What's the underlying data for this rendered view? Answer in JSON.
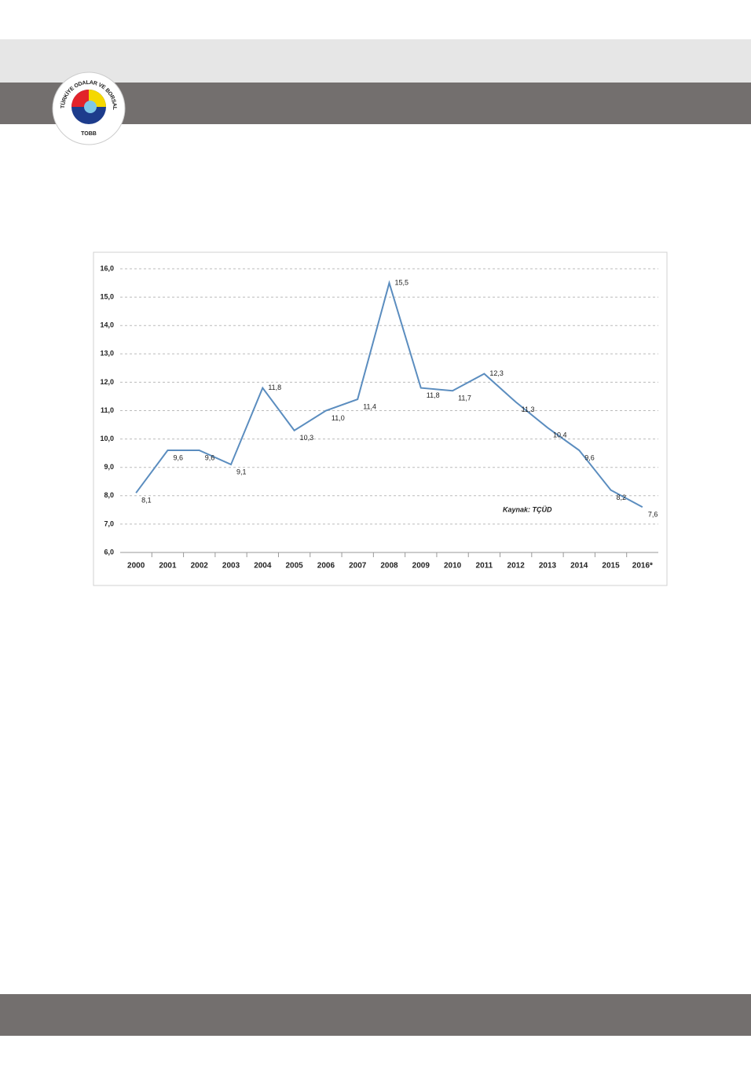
{
  "logo": {
    "name": "TOBB",
    "ring": "TÜRKİYE ODALAR VE BORSALAR BİRLİĞİ"
  },
  "chart_data": {
    "type": "line",
    "categories": [
      "2000",
      "2001",
      "2002",
      "2003",
      "2004",
      "2005",
      "2006",
      "2007",
      "2008",
      "2009",
      "2010",
      "2011",
      "2012",
      "2013",
      "2014",
      "2015",
      "2016*"
    ],
    "series": [
      {
        "name": "",
        "color": "#5b8dbf",
        "values": [
          8.1,
          9.6,
          9.6,
          9.1,
          11.8,
          10.3,
          11.0,
          11.4,
          15.5,
          11.8,
          11.7,
          12.3,
          11.3,
          10.4,
          9.6,
          8.2,
          7.6
        ],
        "value_labels": [
          "8,1",
          "9,6",
          "9,6",
          "9,1",
          "11,8",
          "10,3",
          "11,0",
          "11,4",
          "15,5",
          "11,8",
          "11,7",
          "12,3",
          "11,3",
          "10,4",
          "9,6",
          "8,2",
          "7,6"
        ]
      }
    ],
    "ylim": [
      6,
      16
    ],
    "yticks": [
      {
        "value": 6,
        "label": "6,0"
      },
      {
        "value": 7,
        "label": "7,0"
      },
      {
        "value": 8,
        "label": "8,0"
      },
      {
        "value": 9,
        "label": "9,0"
      },
      {
        "value": 10,
        "label": "10,0"
      },
      {
        "value": 11,
        "label": "11,0"
      },
      {
        "value": 12,
        "label": "12,0"
      },
      {
        "value": 13,
        "label": "13,0"
      },
      {
        "value": 14,
        "label": "14,0"
      },
      {
        "value": 15,
        "label": "15,0"
      },
      {
        "value": 16,
        "label": "16,0"
      }
    ],
    "grid": true,
    "annotation": "Kaynak: TÇÜD"
  }
}
